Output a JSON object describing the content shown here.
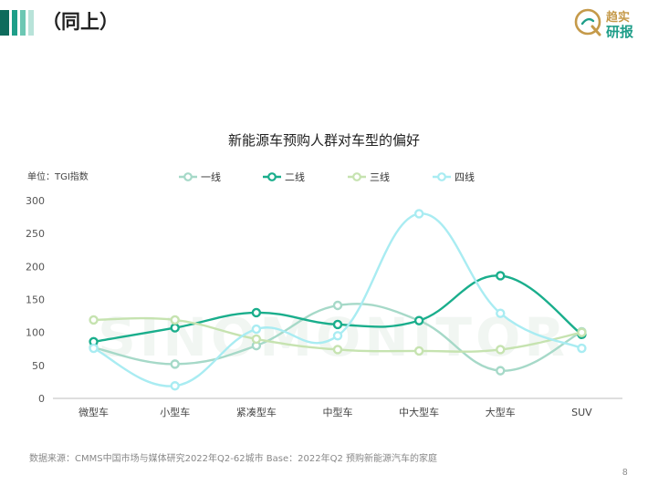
{
  "header": {
    "title": "（同上）",
    "brand_line1": "趋实",
    "brand_line2": "研报",
    "accent_colors": [
      "#0e6b5c",
      "#1f9e89",
      "#6cc7b3",
      "#b8e3d9"
    ]
  },
  "footer": {
    "source": "数据来源：CMMS中国市场与媒体研究2022年Q2-62城市  Base：2022年Q2 预购新能源汽车的家庭",
    "page_number": "8"
  },
  "watermark": "SINOMONITOR",
  "chart_data": {
    "type": "line",
    "title": "新能源车预购人群对车型的偏好",
    "unit_label": "单位：TGI指数",
    "categories": [
      "微型车",
      "小型车",
      "紧凑型车",
      "中型车",
      "中大型车",
      "大型车",
      "SUV"
    ],
    "yticks": [
      "0",
      "50",
      "100",
      "150",
      "200",
      "250",
      "300"
    ],
    "ylim": [
      0,
      300
    ],
    "legend_position": "top",
    "series": [
      {
        "name": "一线",
        "color": "#a6d9c8",
        "values": [
          77,
          52,
          80,
          141,
          118,
          42,
          101
        ]
      },
      {
        "name": "二线",
        "color": "#1aae8c",
        "values": [
          86,
          107,
          130,
          112,
          118,
          186,
          97
        ]
      },
      {
        "name": "三线",
        "color": "#c6e3b0",
        "values": [
          119,
          119,
          90,
          74,
          72,
          74,
          100
        ]
      },
      {
        "name": "四线",
        "color": "#a9ecf2",
        "values": [
          76,
          19,
          105,
          95,
          280,
          129,
          76
        ]
      }
    ]
  }
}
